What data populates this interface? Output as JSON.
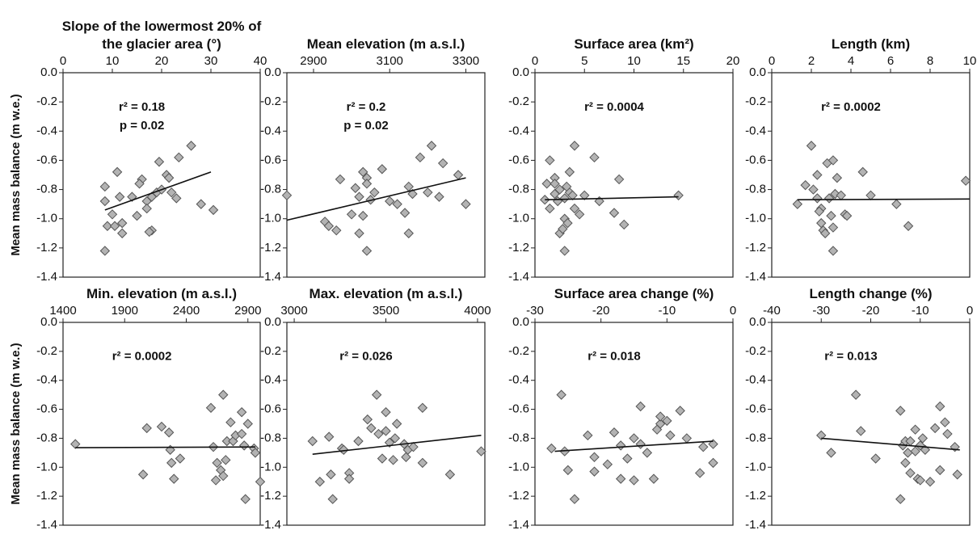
{
  "chart_data": [
    {
      "type": "scatter",
      "title": "Slope of the lowermost 20% of the glacier area (°)",
      "y_label": "Mean mass balance (m w.e.)",
      "xlim": [
        0,
        40
      ],
      "xticks": [
        0,
        10,
        20,
        30,
        40
      ],
      "ylim": [
        -1.4,
        0
      ],
      "yticks": [
        {
          "value": 0,
          "label": "0.0"
        },
        -0.2,
        -0.4,
        -0.6,
        -0.8,
        {
          "value": -1,
          "label": "-1.0"
        },
        -1.2,
        -1.4
      ],
      "annotations": [
        "r² = 0.18",
        "p = 0.02"
      ],
      "marker_color": "#b3b3b3",
      "x": [
        8.5,
        8.5,
        9,
        8.5,
        10,
        10.5,
        11,
        11.5,
        12,
        12,
        14,
        15,
        16,
        15.5,
        17,
        17,
        18,
        17.5,
        19,
        19.5,
        20,
        21,
        21.5,
        22,
        23,
        23.5,
        26,
        28,
        30.5,
        18
      ],
      "y": [
        -0.78,
        -0.88,
        -1.05,
        -1.22,
        -0.97,
        -1.05,
        -0.68,
        -0.85,
        -1.1,
        -1.03,
        -0.85,
        -0.98,
        -0.73,
        -0.76,
        -0.88,
        -0.93,
        -1.08,
        -1.09,
        -0.82,
        -0.61,
        -0.8,
        -0.7,
        -0.72,
        -0.82,
        -0.86,
        -0.58,
        -0.5,
        -0.9,
        -0.94,
        -0.85
      ],
      "fit_x": [
        8.5,
        30
      ],
      "fit_y": [
        -0.94,
        -0.68
      ]
    },
    {
      "type": "scatter",
      "title": "Mean elevation (m a.s.l.)",
      "xlim": [
        2830,
        3350
      ],
      "xticks": [
        2900,
        3100,
        3300
      ],
      "ylim": [
        -1.4,
        0
      ],
      "yticks": [
        {
          "value": 0,
          "label": "0.0"
        },
        -0.2,
        -0.4,
        -0.6,
        -0.8,
        {
          "value": -1,
          "label": "-1.0"
        },
        -1.2,
        -1.4
      ],
      "annotations": [
        "r² = 0.2",
        "p = 0.02"
      ],
      "marker_color": "#b3b3b3",
      "x": [
        2830,
        2930,
        2940,
        2960,
        2970,
        3000,
        3010,
        3020,
        3020,
        3030,
        3040,
        3040,
        3030,
        3040,
        3050,
        3060,
        3080,
        3100,
        3120,
        3150,
        3150,
        3160,
        3180,
        3200,
        3210,
        3230,
        3240,
        3280,
        3300,
        3140
      ],
      "y": [
        -0.84,
        -1.02,
        -1.05,
        -1.08,
        -0.73,
        -0.97,
        -0.79,
        -0.85,
        -1.1,
        -0.68,
        -0.72,
        -0.76,
        -0.98,
        -1.22,
        -0.87,
        -0.82,
        -0.66,
        -0.88,
        -0.9,
        -1.1,
        -0.78,
        -0.83,
        -0.58,
        -0.82,
        -0.5,
        -0.85,
        -0.62,
        -0.7,
        -0.9,
        -0.96
      ],
      "fit_x": [
        2830,
        3300
      ],
      "fit_y": [
        -1.01,
        -0.72
      ]
    },
    {
      "type": "scatter",
      "title": "Surface area (km²)",
      "xlim": [
        0,
        20
      ],
      "xticks": [
        0,
        5,
        10,
        15,
        20
      ],
      "ylim": [
        -1.4,
        0
      ],
      "yticks": [
        {
          "value": 0,
          "label": "0.0"
        },
        -0.2,
        -0.4,
        -0.6,
        -0.8,
        {
          "value": -1,
          "label": "-1.0"
        },
        -1.2,
        -1.4
      ],
      "annotations": [
        "r² = 0.0004"
      ],
      "marker_color": "#b3b3b3",
      "x": [
        1,
        1.2,
        1.5,
        1.5,
        2,
        2,
        2.3,
        2.5,
        2.5,
        2.8,
        3,
        3,
        3,
        3.3,
        3.5,
        3.5,
        3.8,
        4,
        4,
        4.5,
        5,
        6,
        6.5,
        8,
        8.5,
        9,
        14.5,
        2,
        3.2
      ],
      "y": [
        -0.87,
        -0.76,
        -0.6,
        -0.93,
        -0.83,
        -0.72,
        -0.88,
        -1.1,
        -0.8,
        -1.07,
        -1.22,
        -0.86,
        -1.0,
        -1.03,
        -0.68,
        -0.82,
        -0.84,
        -0.5,
        -0.93,
        -0.97,
        -0.84,
        -0.58,
        -0.88,
        -0.96,
        -0.73,
        -1.04,
        -0.84,
        -0.76,
        -0.78
      ],
      "fit_x": [
        1,
        14.5
      ],
      "fit_y": [
        -0.87,
        -0.85
      ]
    },
    {
      "type": "scatter",
      "title": "Length (km)",
      "xlim": [
        0,
        10
      ],
      "xticks": [
        0,
        2,
        4,
        6,
        8,
        10
      ],
      "ylim": [
        -1.4,
        0
      ],
      "yticks": [
        {
          "value": 0,
          "label": "0.0"
        },
        -0.2,
        -0.4,
        -0.6,
        -0.8,
        {
          "value": -1,
          "label": "-1.0"
        },
        -1.2,
        -1.4
      ],
      "annotations": [
        "r² = 0.0002"
      ],
      "marker_color": "#b3b3b3",
      "x": [
        1.3,
        1.7,
        2,
        2.1,
        2.3,
        2.3,
        2.5,
        2.5,
        2.6,
        2.7,
        2.8,
        2.9,
        3,
        3.1,
        3.1,
        3.1,
        3.2,
        3.3,
        3.5,
        3.7,
        3.8,
        4.6,
        5,
        6.3,
        6.9,
        9.8,
        2.4
      ],
      "y": [
        -0.9,
        -0.77,
        -0.5,
        -0.8,
        -0.7,
        -0.86,
        -1.03,
        -0.93,
        -1.08,
        -1.1,
        -0.62,
        -0.86,
        -0.98,
        -1.06,
        -0.6,
        -1.22,
        -0.83,
        -0.72,
        -0.84,
        -0.97,
        -0.98,
        -0.68,
        -0.84,
        -0.9,
        -1.05,
        -0.74,
        -0.95
      ],
      "fit_x": [
        1.3,
        10
      ],
      "fit_y": [
        -0.87,
        -0.865
      ]
    },
    {
      "type": "scatter",
      "title": "Min. elevation (m a.s.l.)",
      "y_label": "Mean mass balance (m w.e.)",
      "xlim": [
        1400,
        3000
      ],
      "xticks": [
        1400,
        1900,
        2400,
        2900
      ],
      "ylim": [
        -1.4,
        0
      ],
      "yticks": [
        {
          "value": 0,
          "label": "0.0"
        },
        -0.2,
        -0.4,
        -0.6,
        -0.8,
        {
          "value": -1,
          "label": "-1.0"
        },
        -1.2,
        -1.4
      ],
      "annotations": [
        "r² = 0.0002"
      ],
      "marker_color": "#b3b3b3",
      "x": [
        1500,
        2050,
        2080,
        2200,
        2260,
        2270,
        2280,
        2300,
        2350,
        2600,
        2620,
        2640,
        2650,
        2680,
        2700,
        2700,
        2720,
        2730,
        2760,
        2780,
        2800,
        2850,
        2850,
        2870,
        2880,
        2900,
        2950,
        2960,
        3000
      ],
      "y": [
        -0.84,
        -1.05,
        -0.73,
        -0.72,
        -0.76,
        -0.88,
        -0.97,
        -1.08,
        -0.94,
        -0.59,
        -0.86,
        -1.09,
        -0.97,
        -1.02,
        -0.5,
        -1.06,
        -0.95,
        -0.82,
        -0.69,
        -0.82,
        -0.78,
        -0.62,
        -0.77,
        -0.85,
        -1.22,
        -0.7,
        -0.87,
        -0.9,
        -1.1
      ],
      "fit_x": [
        1500,
        2960
      ],
      "fit_y": [
        -0.865,
        -0.86
      ]
    },
    {
      "type": "scatter",
      "title": "Max. elevation (m a.s.l.)",
      "xlim": [
        2960,
        4040
      ],
      "xticks": [
        3000,
        3500,
        4000
      ],
      "ylim": [
        -1.4,
        0
      ],
      "yticks": [
        {
          "value": 0,
          "label": "0.0"
        },
        -0.2,
        -0.4,
        -0.6,
        -0.8,
        {
          "value": -1,
          "label": "-1.0"
        },
        -1.2,
        -1.4
      ],
      "annotations": [
        "r² = 0.026"
      ],
      "marker_color": "#b3b3b3",
      "x": [
        3100,
        3140,
        3190,
        3200,
        3210,
        3260,
        3270,
        3300,
        3300,
        3350,
        3400,
        3420,
        3450,
        3460,
        3480,
        3500,
        3500,
        3520,
        3540,
        3560,
        3600,
        3610,
        3620,
        3650,
        3700,
        3700,
        3850,
        4020,
        3550
      ],
      "y": [
        -0.82,
        -1.1,
        -0.79,
        -1.05,
        -1.22,
        -0.87,
        -0.88,
        -1.04,
        -1.08,
        -0.82,
        -0.67,
        -0.73,
        -0.5,
        -0.77,
        -0.94,
        -0.62,
        -0.75,
        -0.83,
        -0.95,
        -0.7,
        -0.84,
        -0.93,
        -0.88,
        -0.86,
        -0.59,
        -0.97,
        -1.05,
        -0.89,
        -0.8
      ],
      "fit_x": [
        3100,
        4020
      ],
      "fit_y": [
        -0.91,
        -0.78
      ]
    },
    {
      "type": "scatter",
      "title": "Surface area change (%)",
      "xlim": [
        -30,
        0
      ],
      "xticks": [
        -30,
        -20,
        -10,
        0
      ],
      "ylim": [
        -1.4,
        0
      ],
      "yticks": [
        {
          "value": 0,
          "label": "0.0"
        },
        -0.2,
        -0.4,
        -0.6,
        -0.8,
        {
          "value": -1,
          "label": "-1.0"
        },
        -1.2,
        -1.4
      ],
      "annotations": [
        "r² = 0.018"
      ],
      "marker_color": "#b3b3b3",
      "x": [
        -27.5,
        -26,
        -25.5,
        -25,
        -24,
        -22,
        -21,
        -21,
        -19,
        -18,
        -17,
        -17,
        -16,
        -15,
        -15,
        -14,
        -14,
        -13,
        -12,
        -11.5,
        -11,
        -11,
        -10,
        -9.5,
        -8,
        -7,
        -5,
        -4.5,
        -3,
        -3
      ],
      "y": [
        -0.87,
        -0.5,
        -0.89,
        -1.02,
        -1.22,
        -0.78,
        -1.03,
        -0.93,
        -0.98,
        -0.76,
        -0.85,
        -1.08,
        -0.94,
        -0.8,
        -1.09,
        -0.58,
        -0.84,
        -0.9,
        -1.08,
        -0.74,
        -0.7,
        -0.65,
        -0.68,
        -0.78,
        -0.61,
        -0.8,
        -1.04,
        -0.86,
        -0.84,
        -0.97
      ],
      "fit_x": [
        -27,
        -3
      ],
      "fit_y": [
        -0.89,
        -0.82
      ]
    },
    {
      "type": "scatter",
      "title": "Length change (%)",
      "xlim": [
        -40,
        0
      ],
      "xticks": [
        -40,
        -30,
        -20,
        -10,
        0
      ],
      "ylim": [
        -1.4,
        0
      ],
      "yticks": [
        {
          "value": 0,
          "label": "0.0"
        },
        -0.2,
        -0.4,
        -0.6,
        -0.8,
        {
          "value": -1,
          "label": "-1.0"
        },
        -1.2,
        -1.4
      ],
      "annotations": [
        "r² = 0.013"
      ],
      "marker_color": "#b3b3b3",
      "x": [
        -30,
        -28,
        -23,
        -22,
        -19,
        -14,
        -14,
        -13.5,
        -13,
        -13,
        -12,
        -12,
        -11,
        -11,
        -10.5,
        -10,
        -10,
        -9.5,
        -8,
        -7,
        -6,
        -6,
        -5,
        -4.5,
        -3,
        -2.5,
        -9,
        -12.5
      ],
      "y": [
        -0.78,
        -0.9,
        -0.5,
        -0.75,
        -0.94,
        -0.61,
        -1.22,
        -0.85,
        -0.82,
        -0.97,
        -0.82,
        -1.04,
        -0.89,
        -0.74,
        -1.08,
        -0.85,
        -1.09,
        -0.8,
        -1.1,
        -0.73,
        -0.58,
        -1.02,
        -0.69,
        -0.77,
        -0.86,
        -1.05,
        -0.88,
        -0.9
      ],
      "fit_x": [
        -30,
        -2
      ],
      "fit_y": [
        -0.8,
        -0.88
      ]
    }
  ]
}
